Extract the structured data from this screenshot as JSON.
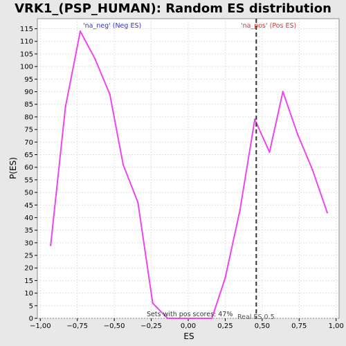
{
  "chart_data": {
    "type": "line",
    "title": "VRK1_(PSP_HUMAN): Random ES distribution",
    "xlabel": "ES",
    "ylabel": "P(ES)",
    "xlim": [
      -1.02,
      1.02
    ],
    "ylim": [
      0,
      119
    ],
    "x_ticks": [
      -1.0,
      -0.75,
      -0.5,
      -0.25,
      0.0,
      0.25,
      0.5,
      0.75,
      1.0
    ],
    "x_tick_labels": [
      "−1,00",
      "−0,75",
      "−0,50",
      "−0,25",
      "0,00",
      "0,25",
      "0,50",
      "0,75",
      "1,00"
    ],
    "y_ticks": [
      0,
      5,
      10,
      15,
      20,
      25,
      30,
      35,
      40,
      45,
      50,
      55,
      60,
      65,
      70,
      75,
      80,
      85,
      90,
      95,
      100,
      105,
      110,
      115
    ],
    "y_tick_labels": [
      "0",
      "5",
      "10",
      "15",
      "20",
      "25",
      "30",
      "35",
      "40",
      "45",
      "50",
      "55",
      "60",
      "65",
      "70",
      "75",
      "80",
      "85",
      "90",
      "95",
      "100",
      "105",
      "110",
      "115"
    ],
    "grid": true,
    "series": [
      {
        "color": "#ee44ee",
        "x": [
          -0.93,
          -0.83,
          -0.73,
          -0.63,
          -0.53,
          -0.44,
          -0.34,
          -0.24,
          -0.14,
          0.16,
          0.25,
          0.35,
          0.45,
          0.55,
          0.64,
          0.74,
          0.84,
          0.94
        ],
        "y": [
          29,
          84,
          114,
          103,
          89,
          61,
          46,
          6,
          0,
          0,
          16,
          43,
          79,
          66,
          90,
          73,
          59,
          42
        ]
      }
    ],
    "real_es": 0.46,
    "annotations": {
      "neg": "'na_neg' (Neg ES)",
      "pos": "'na_pos' (Pos ES)",
      "pos_scores": "Sets with pos scores: 47%",
      "real_es": "Real ES 0.5"
    },
    "colors": {
      "neg_label": "#3333cc",
      "pos_label": "#dd3333",
      "grid": "#e0e0e0",
      "plot_bg": "#ffffff",
      "page_bg": "#e8e8e8"
    }
  }
}
